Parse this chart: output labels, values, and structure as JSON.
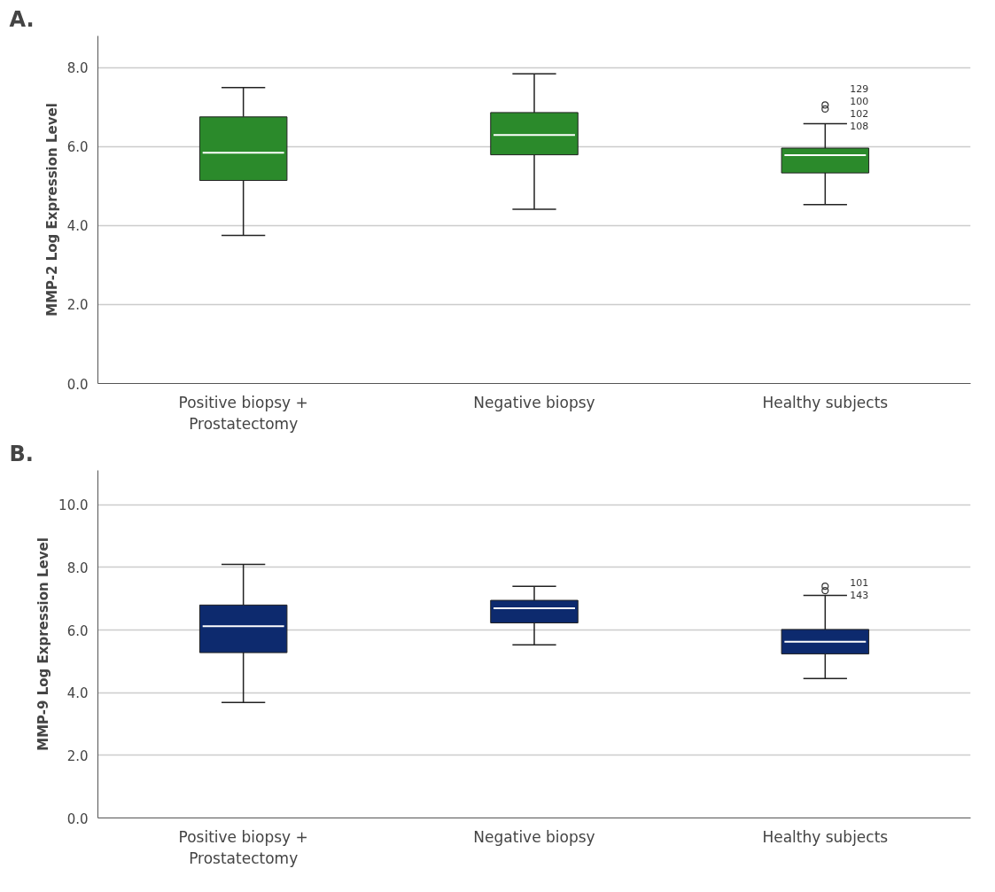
{
  "chart_data": [
    {
      "type": "box",
      "ylabel": "MMP-2 Log Expression Level",
      "categories": [
        "Positive biopsy + Prostatectomy",
        "Negative biopsy",
        "Healthy subjects"
      ],
      "color": "#2b8a2b",
      "grid": "y",
      "ylim": [
        0,
        8.8
      ],
      "yticks": [
        {
          "value": 0,
          "label": "0.0"
        },
        {
          "value": 2,
          "label": "2.0"
        },
        {
          "value": 4,
          "label": "4.0"
        },
        {
          "value": 6,
          "label": "6.0"
        },
        {
          "value": 8,
          "label": "8.0"
        }
      ],
      "boxes": [
        {
          "low": 3.75,
          "q1": 5.14,
          "median": 5.84,
          "q3": 6.75,
          "high": 7.49
        },
        {
          "low": 4.41,
          "q1": 5.79,
          "median": 6.29,
          "q3": 6.86,
          "high": 7.84
        },
        {
          "low": 4.53,
          "q1": 5.33,
          "median": 5.78,
          "q3": 5.96,
          "high": 6.58,
          "outliers": [
            7.05,
            6.95
          ]
        }
      ],
      "annotations": [
        "A.",
        "129",
        "100",
        "102",
        "108"
      ]
    },
    {
      "type": "box",
      "ylabel": "MMP-9 Log Expression Level",
      "categories": [
        "Positive biopsy + Prostatectomy",
        "Negative biopsy",
        "Healthy subjects"
      ],
      "color": "#0d2a6e",
      "grid": "y",
      "ylim": [
        0,
        11.1
      ],
      "yticks": [
        {
          "value": 0,
          "label": "0.0"
        },
        {
          "value": 2,
          "label": "2.0"
        },
        {
          "value": 4,
          "label": "4.0"
        },
        {
          "value": 6,
          "label": "6.0"
        },
        {
          "value": 8,
          "label": "8.0"
        },
        {
          "value": 10,
          "label": "10.0"
        }
      ],
      "boxes": [
        {
          "low": 3.69,
          "q1": 5.28,
          "median": 6.12,
          "q3": 6.8,
          "high": 8.1
        },
        {
          "low": 5.53,
          "q1": 6.23,
          "median": 6.7,
          "q3": 6.95,
          "high": 7.4
        },
        {
          "low": 4.45,
          "q1": 5.24,
          "median": 5.63,
          "q3": 6.02,
          "high": 7.11,
          "outliers": [
            7.4,
            7.26
          ]
        }
      ],
      "annotations": [
        "B.",
        "101",
        "143"
      ]
    }
  ]
}
